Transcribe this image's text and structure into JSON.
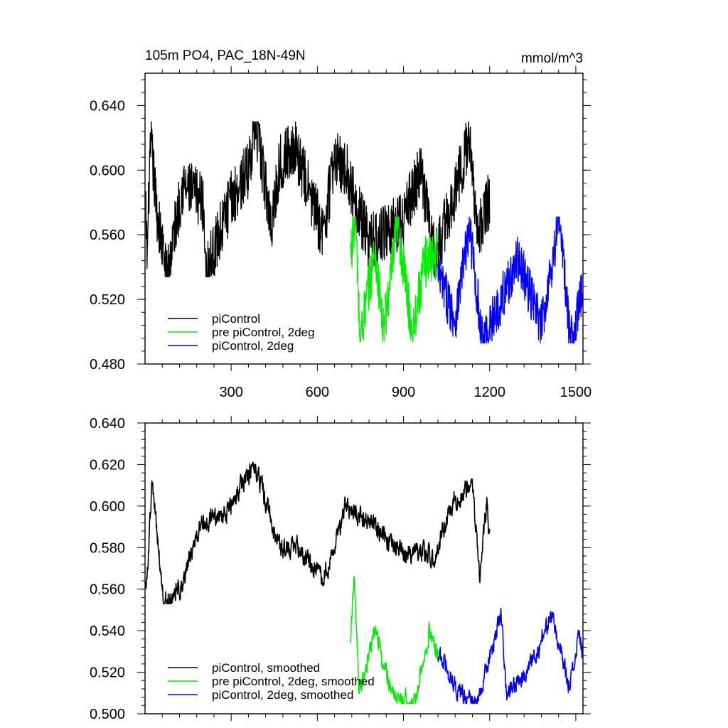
{
  "title_left": "105m PO4, PAC_18N-49N",
  "title_right": "mmol/m^3",
  "colors": {
    "piControl": "#000000",
    "pre_2deg": "#00ee00",
    "picontrol_2deg": "#0000ff"
  },
  "chart_data": [
    {
      "type": "line",
      "panel": "top",
      "xlim": [
        0,
        1525
      ],
      "ylim": [
        0.48,
        0.66
      ],
      "x_ticks": [
        300,
        600,
        900,
        1200,
        1500
      ],
      "x_tick_labels": [
        "300",
        "600",
        "900",
        "1200",
        "1500"
      ],
      "y_ticks": [
        0.48,
        0.52,
        0.56,
        0.6,
        0.64
      ],
      "y_tick_labels": [
        "0.480",
        "0.520",
        "0.560",
        "0.600",
        "0.640"
      ],
      "legend": [
        "piControl",
        "pre piControl, 2deg",
        "piControl, 2deg"
      ],
      "legend_position": "bottom-left",
      "series": [
        {
          "name": "piControl",
          "color": "#000000",
          "x_range": [
            1,
            1200
          ],
          "mean": 0.579,
          "amplitude": 0.018,
          "min": 0.534,
          "max": 0.63,
          "points": [
            [
              2,
              0.576
            ],
            [
              8,
              0.545
            ],
            [
              15,
              0.598
            ],
            [
              22,
              0.615
            ],
            [
              40,
              0.576
            ],
            [
              75,
              0.534
            ],
            [
              130,
              0.59
            ],
            [
              200,
              0.582
            ],
            [
              215,
              0.538
            ],
            [
              300,
              0.582
            ],
            [
              360,
              0.6
            ],
            [
              383,
              0.63
            ],
            [
              440,
              0.567
            ],
            [
              470,
              0.605
            ],
            [
              520,
              0.615
            ],
            [
              620,
              0.56
            ],
            [
              660,
              0.608
            ],
            [
              700,
              0.6
            ],
            [
              780,
              0.555
            ],
            [
              900,
              0.57
            ],
            [
              960,
              0.6
            ],
            [
              1010,
              0.545
            ],
            [
              1100,
              0.6
            ],
            [
              1130,
              0.62
            ],
            [
              1160,
              0.56
            ],
            [
              1195,
              0.58
            ]
          ]
        },
        {
          "name": "pre piControl, 2deg",
          "color": "#00ee00",
          "x_range": [
            715,
            1020
          ],
          "mean": 0.528,
          "amplitude": 0.016,
          "min": 0.494,
          "max": 0.571,
          "points": [
            [
              715,
              0.548
            ],
            [
              733,
              0.571
            ],
            [
              748,
              0.495
            ],
            [
              800,
              0.55
            ],
            [
              830,
              0.5
            ],
            [
              880,
              0.566
            ],
            [
              930,
              0.5
            ],
            [
              975,
              0.543
            ],
            [
              1010,
              0.548
            ]
          ]
        },
        {
          "name": "piControl, 2deg",
          "color": "#0000ff",
          "x_range": [
            1020,
            1525
          ],
          "mean": 0.528,
          "amplitude": 0.015,
          "min": 0.493,
          "max": 0.571,
          "points": [
            [
              1020,
              0.535
            ],
            [
              1080,
              0.508
            ],
            [
              1130,
              0.565
            ],
            [
              1175,
              0.493
            ],
            [
              1300,
              0.545
            ],
            [
              1380,
              0.503
            ],
            [
              1443,
              0.571
            ],
            [
              1480,
              0.495
            ],
            [
              1520,
              0.522
            ]
          ]
        }
      ]
    },
    {
      "type": "line",
      "panel": "bottom",
      "xlim": [
        0,
        1525
      ],
      "ylim": [
        0.5,
        0.64
      ],
      "x_ticks": [
        300,
        600,
        900,
        1200,
        1500
      ],
      "y_ticks": [
        0.5,
        0.52,
        0.54,
        0.56,
        0.58,
        0.6,
        0.62,
        0.64
      ],
      "y_tick_labels": [
        "0.500",
        "0.520",
        "0.540",
        "0.560",
        "0.580",
        "0.600",
        "0.620",
        "0.640"
      ],
      "legend": [
        "piControl, smoothed",
        "pre piControl, 2deg, smoothed",
        "piControl, 2deg, smoothed"
      ],
      "legend_position": "bottom-left",
      "series": [
        {
          "name": "piControl, smoothed",
          "color": "#000000",
          "x_range": [
            1,
            1200
          ],
          "mean": 0.58,
          "amplitude": 0.009,
          "min": 0.553,
          "max": 0.621,
          "points": [
            [
              1,
              0.565
            ],
            [
              5,
              0.561
            ],
            [
              25,
              0.611
            ],
            [
              65,
              0.553
            ],
            [
              120,
              0.56
            ],
            [
              195,
              0.591
            ],
            [
              300,
              0.599
            ],
            [
              380,
              0.621
            ],
            [
              470,
              0.58
            ],
            [
              528,
              0.581
            ],
            [
              620,
              0.565
            ],
            [
              700,
              0.6
            ],
            [
              760,
              0.594
            ],
            [
              900,
              0.578
            ],
            [
              1010,
              0.577
            ],
            [
              1080,
              0.603
            ],
            [
              1140,
              0.611
            ],
            [
              1165,
              0.565
            ],
            [
              1190,
              0.603
            ],
            [
              1200,
              0.584
            ]
          ]
        },
        {
          "name": "pre piControl, 2deg, smoothed",
          "color": "#00ee00",
          "x_range": [
            715,
            1020
          ],
          "mean": 0.527,
          "amplitude": 0.008,
          "min": 0.505,
          "max": 0.567,
          "points": [
            [
              715,
              0.537
            ],
            [
              728,
              0.567
            ],
            [
              745,
              0.51
            ],
            [
              800,
              0.54
            ],
            [
              860,
              0.51
            ],
            [
              940,
              0.505
            ],
            [
              990,
              0.54
            ],
            [
              1020,
              0.527
            ]
          ]
        },
        {
          "name": "piControl, 2deg, smoothed",
          "color": "#0000ff",
          "x_range": [
            1020,
            1525
          ],
          "mean": 0.528,
          "amplitude": 0.008,
          "min": 0.505,
          "max": 0.554,
          "points": [
            [
              1020,
              0.53
            ],
            [
              1090,
              0.51
            ],
            [
              1160,
              0.505
            ],
            [
              1240,
              0.549
            ],
            [
              1260,
              0.509
            ],
            [
              1350,
              0.525
            ],
            [
              1420,
              0.547
            ],
            [
              1480,
              0.512
            ],
            [
              1510,
              0.54
            ],
            [
              1525,
              0.527
            ]
          ]
        }
      ]
    }
  ]
}
